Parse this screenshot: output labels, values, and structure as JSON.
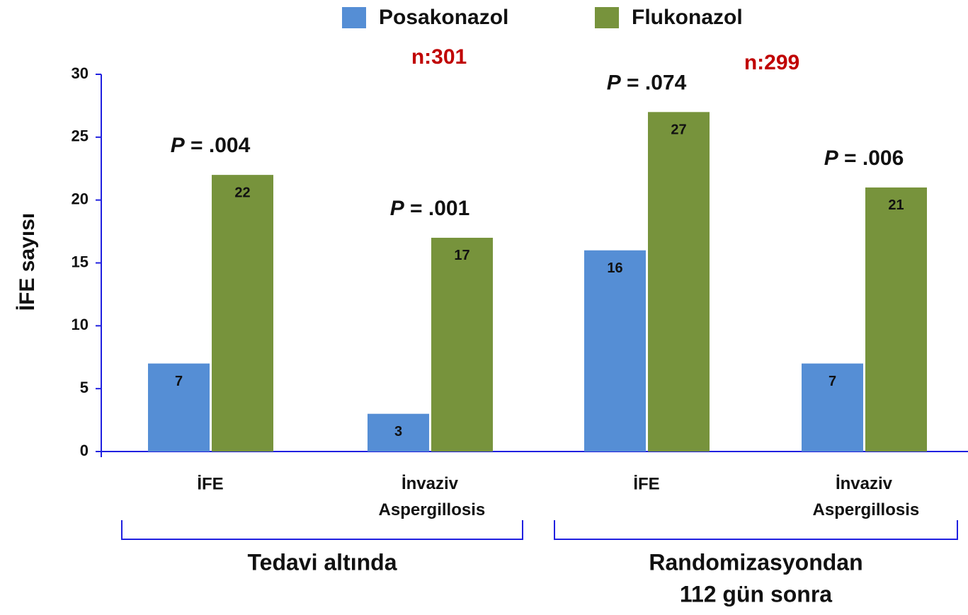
{
  "chart_data": {
    "type": "bar",
    "ylabel": "İFE sayısı",
    "categories": [
      "İFE",
      "İnvaziv Aspergillosis",
      "İFE",
      "İnvaziv Aspergillosis"
    ],
    "series": [
      {
        "name": "Posakonazol",
        "color": "#558ed5",
        "values": [
          7,
          3,
          16,
          7
        ]
      },
      {
        "name": "Flukonazol",
        "color": "#77933c",
        "values": [
          22,
          17,
          27,
          21
        ]
      }
    ],
    "groups": [
      [
        "Tedavi altında"
      ],
      [
        "Randomizasyondan",
        "112 gün sonra"
      ]
    ],
    "group_notes": [
      "n:301",
      "n:299"
    ],
    "annotations": [
      "P = .004",
      "P = .001",
      "P = .074",
      "P = .006"
    ],
    "ylim": [
      0,
      30
    ],
    "yticks": [
      0,
      5,
      10,
      15,
      20,
      25,
      30
    ]
  }
}
